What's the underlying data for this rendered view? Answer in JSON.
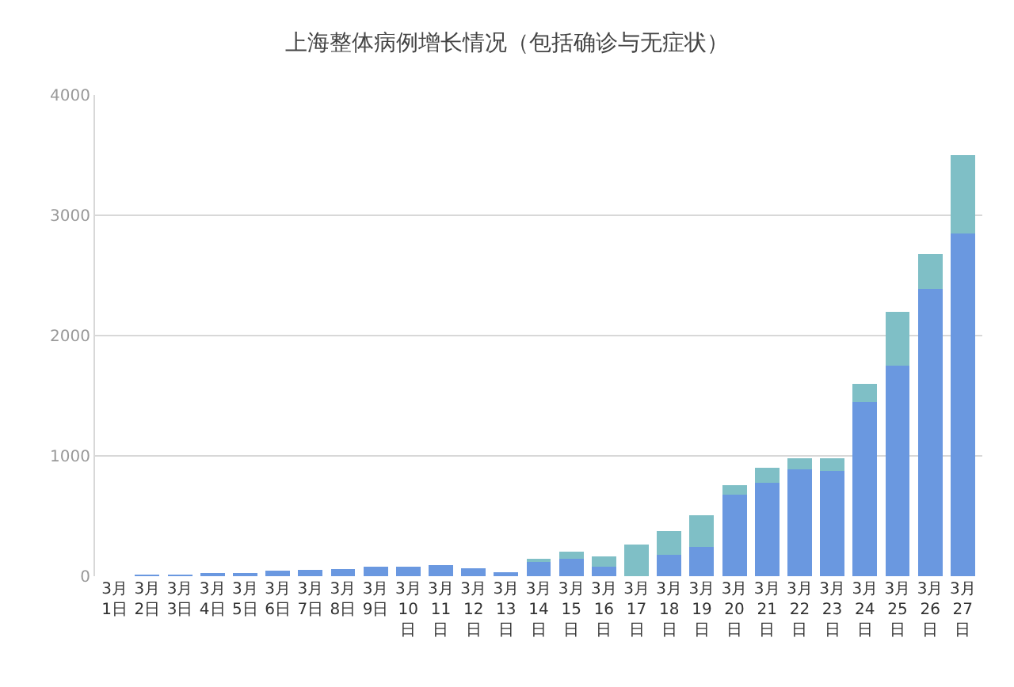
{
  "chart_data": {
    "type": "bar",
    "title": "上海整体病例增长情况（包括确诊与无症状）",
    "categories": [
      "3月1日",
      "3月2日",
      "3月3日",
      "3月4日",
      "3月5日",
      "3月6日",
      "3月7日",
      "3月8日",
      "3月9日",
      "3月10日",
      "3月11日",
      "3月12日",
      "3月13日",
      "3月14日",
      "3月15日",
      "3月16日",
      "3月17日",
      "3月18日",
      "3月19日",
      "3月20日",
      "3月21日",
      "3月22日",
      "3月23日",
      "3月24日",
      "3月25日",
      "3月26日",
      "3月27日"
    ],
    "stacked": true,
    "series": [
      {
        "color": "#6a98e0",
        "values": [
          0,
          3,
          10,
          15,
          20,
          49,
          55,
          60,
          77,
          77,
          89,
          69,
          36,
          121,
          142,
          77,
          0,
          178,
          243,
          676,
          777,
          891,
          874,
          1450,
          1750,
          2390,
          2850
        ]
      },
      {
        "color": "#7fbfc6",
        "values": [
          0,
          0,
          0,
          0,
          0,
          0,
          0,
          0,
          0,
          0,
          0,
          0,
          0,
          21,
          64,
          85,
          263,
          199,
          263,
          81,
          122,
          89,
          106,
          150,
          450,
          290,
          650
        ]
      }
    ],
    "ylim": [
      0,
      4000
    ],
    "yticks": [
      0,
      1000,
      2000,
      3000,
      4000
    ],
    "grid": "y"
  }
}
